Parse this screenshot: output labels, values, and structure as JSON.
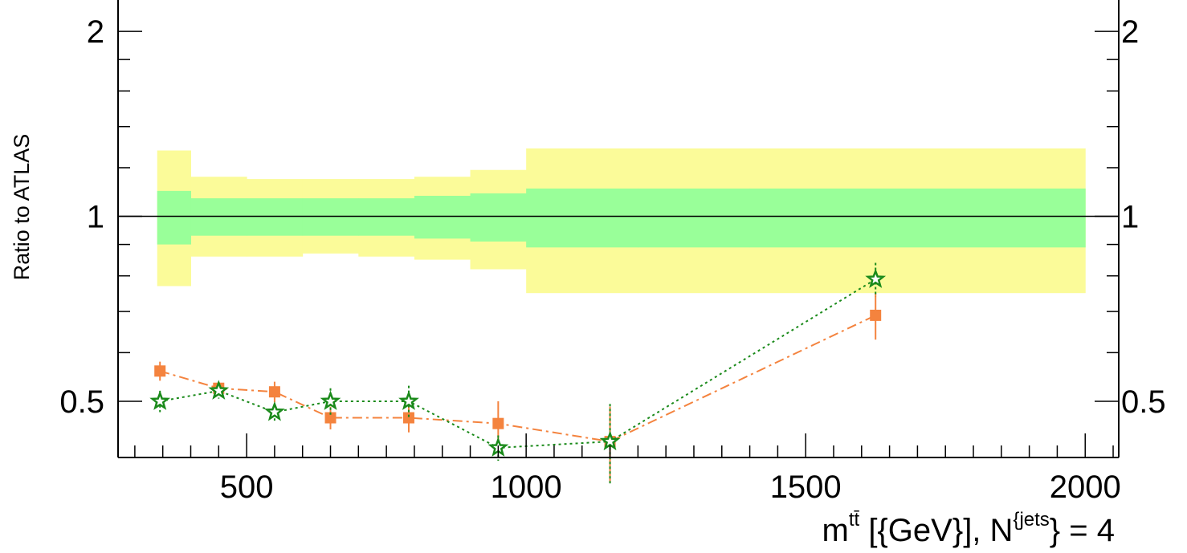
{
  "chart_data": {
    "type": "scatter",
    "ylabel": "Ratio to ATLAS",
    "xlabel": {
      "main": "m",
      "main_sup": "tt̄",
      "units": " [{GeV}], N",
      "units_sup": "{jets",
      "suffix": "} = 4"
    },
    "xlim": [
      270,
      2060
    ],
    "ylim": [
      0.405,
      2.25
    ],
    "y_scale": "log",
    "x_ticks": [
      500,
      1000,
      1500,
      2000
    ],
    "x_tick_labels": [
      "500",
      "1000",
      "1500",
      "2000"
    ],
    "y_ticks": [
      0.5,
      1,
      2
    ],
    "y_tick_labels": [
      "0.5",
      "1",
      "2"
    ],
    "bands": [
      {
        "x0": 340,
        "x1": 400,
        "inner": [
          0.9,
          1.1
        ],
        "outer": [
          0.77,
          1.28
        ]
      },
      {
        "x0": 400,
        "x1": 500,
        "inner": [
          0.93,
          1.07
        ],
        "outer": [
          0.86,
          1.16
        ]
      },
      {
        "x0": 500,
        "x1": 600,
        "inner": [
          0.93,
          1.07
        ],
        "outer": [
          0.86,
          1.15
        ]
      },
      {
        "x0": 600,
        "x1": 700,
        "inner": [
          0.93,
          1.07
        ],
        "outer": [
          0.87,
          1.15
        ]
      },
      {
        "x0": 700,
        "x1": 800,
        "inner": [
          0.93,
          1.07
        ],
        "outer": [
          0.86,
          1.15
        ]
      },
      {
        "x0": 800,
        "x1": 900,
        "inner": [
          0.92,
          1.08
        ],
        "outer": [
          0.85,
          1.16
        ]
      },
      {
        "x0": 900,
        "x1": 1000,
        "inner": [
          0.91,
          1.09
        ],
        "outer": [
          0.82,
          1.19
        ]
      },
      {
        "x0": 1000,
        "x1": 1200,
        "inner": [
          0.89,
          1.11
        ],
        "outer": [
          0.75,
          1.29
        ]
      },
      {
        "x0": 1200,
        "x1": 1400,
        "inner": [
          0.89,
          1.11
        ],
        "outer": [
          0.75,
          1.29
        ]
      },
      {
        "x0": 1400,
        "x1": 2000,
        "inner": [
          0.89,
          1.11
        ],
        "outer": [
          0.75,
          1.29
        ]
      }
    ],
    "series": [
      {
        "color": "#f4833e",
        "dash": "12,5,3,5",
        "marker": "square",
        "points": [
          {
            "x": 345,
            "y": 0.56,
            "err": 0.02
          },
          {
            "x": 450,
            "y": 0.525,
            "err": 0.012
          },
          {
            "x": 550,
            "y": 0.518,
            "err": 0.02
          },
          {
            "x": 650,
            "y": 0.47,
            "err": 0.02
          },
          {
            "x": 790,
            "y": 0.47,
            "err": 0.025
          },
          {
            "x": 950,
            "y": 0.46,
            "err": 0.04
          },
          {
            "x": 1150,
            "y": 0.43,
            "err": 0.06
          },
          {
            "x": 1625,
            "y": 0.69,
            "err": 0.06
          }
        ]
      },
      {
        "color": "#1a8a1a",
        "dash": "3,4",
        "marker": "star",
        "points": [
          {
            "x": 345,
            "y": 0.5,
            "err": 0.02
          },
          {
            "x": 450,
            "y": 0.52,
            "err": 0.015
          },
          {
            "x": 550,
            "y": 0.48,
            "err": 0.015
          },
          {
            "x": 650,
            "y": 0.5,
            "err": 0.025
          },
          {
            "x": 790,
            "y": 0.5,
            "err": 0.03
          },
          {
            "x": 950,
            "y": 0.42,
            "err": 0.02
          },
          {
            "x": 1150,
            "y": 0.43,
            "err": 0.065
          },
          {
            "x": 1625,
            "y": 0.79,
            "err": 0.05
          }
        ]
      }
    ],
    "band_colors": {
      "outer": "#fbfb99",
      "inner": "#99ff99"
    },
    "reference_line": 1
  }
}
